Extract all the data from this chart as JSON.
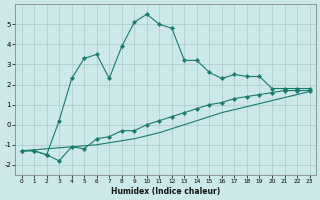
{
  "xlabel": "Humidex (Indice chaleur)",
  "ylabel": "",
  "xlim": [
    -0.5,
    23.5
  ],
  "ylim": [
    -2.5,
    6.0
  ],
  "background_color": "#cce8e8",
  "grid_color": "#aacccc",
  "line_color": "#1a7a6e",
  "series1_x": [
    0,
    1,
    2,
    3,
    4,
    5,
    6,
    7,
    8,
    9,
    10,
    11,
    12,
    13,
    14,
    15,
    16,
    17,
    18,
    19,
    20,
    21,
    22,
    23
  ],
  "series1_y": [
    -1.3,
    -1.3,
    -1.5,
    0.2,
    2.3,
    3.3,
    3.5,
    2.3,
    3.9,
    5.1,
    5.5,
    5.0,
    4.8,
    3.2,
    3.2,
    2.6,
    2.3,
    2.5,
    2.4,
    2.4,
    1.8,
    1.8,
    1.8,
    1.8
  ],
  "series2_x": [
    0,
    1,
    2,
    3,
    4,
    5,
    6,
    7,
    8,
    9,
    10,
    11,
    12,
    13,
    14,
    15,
    16,
    17,
    18,
    19,
    20,
    21,
    22,
    23
  ],
  "series2_y": [
    -1.3,
    -1.3,
    -1.5,
    -1.8,
    -1.1,
    -1.2,
    -0.7,
    -0.6,
    -0.3,
    -0.3,
    0.0,
    0.2,
    0.4,
    0.6,
    0.8,
    1.0,
    1.1,
    1.3,
    1.4,
    1.5,
    1.6,
    1.7,
    1.7,
    1.7
  ],
  "series3_x": [
    0,
    1,
    2,
    3,
    4,
    5,
    6,
    7,
    8,
    9,
    10,
    11,
    12,
    13,
    14,
    15,
    16,
    17,
    18,
    19,
    20,
    21,
    22,
    23
  ],
  "series3_y": [
    -1.3,
    -1.25,
    -1.2,
    -1.15,
    -1.1,
    -1.05,
    -1.0,
    -0.9,
    -0.8,
    -0.7,
    -0.55,
    -0.4,
    -0.2,
    0.0,
    0.2,
    0.4,
    0.6,
    0.75,
    0.9,
    1.05,
    1.2,
    1.35,
    1.5,
    1.65
  ],
  "yticks": [
    -2,
    -1,
    0,
    1,
    2,
    3,
    4,
    5
  ],
  "xticks": [
    0,
    1,
    2,
    3,
    4,
    5,
    6,
    7,
    8,
    9,
    10,
    11,
    12,
    13,
    14,
    15,
    16,
    17,
    18,
    19,
    20,
    21,
    22,
    23
  ]
}
